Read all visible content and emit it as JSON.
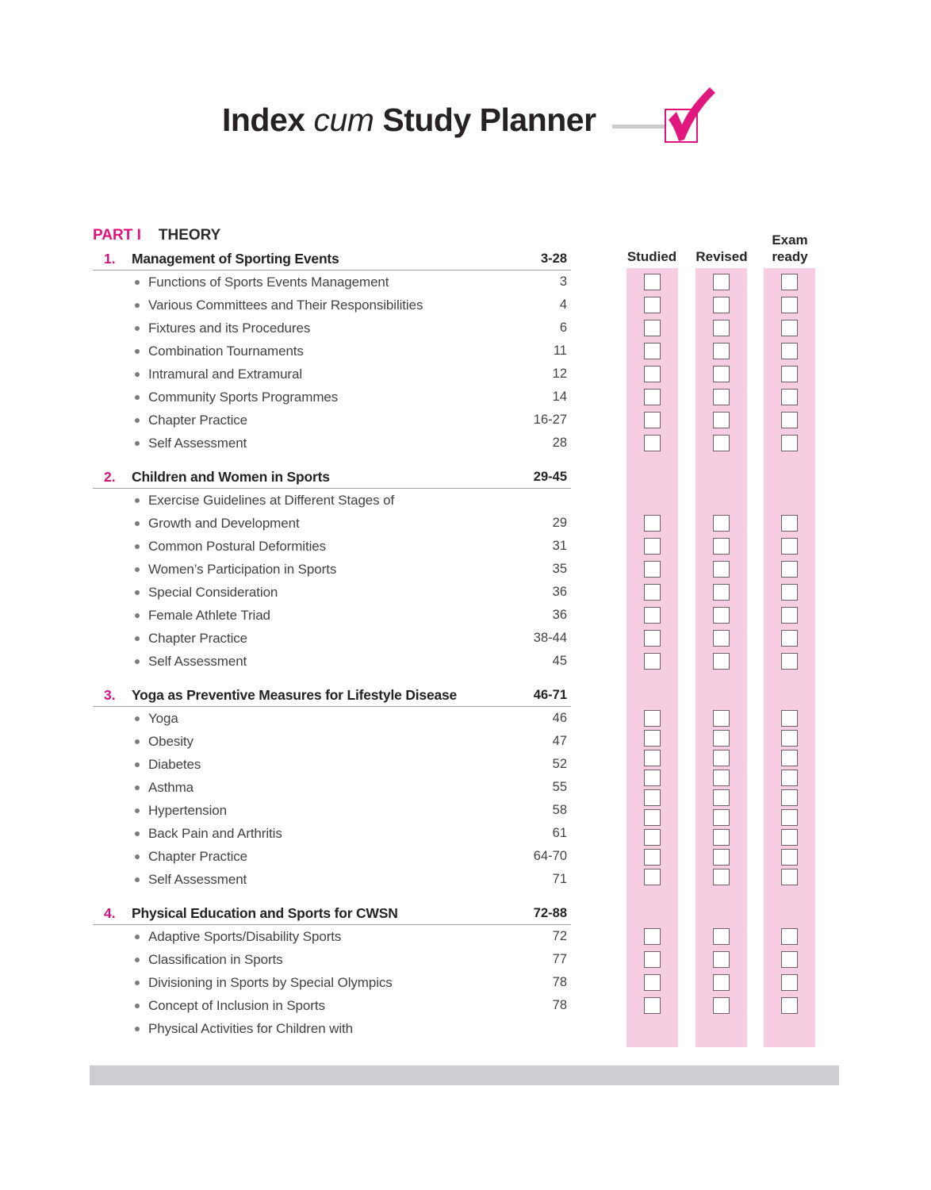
{
  "title": {
    "word1": "Index",
    "word2_italic": "cum",
    "word3": "Study Planner"
  },
  "part_heading": {
    "label": "PART I",
    "title": "THEORY"
  },
  "planner_columns": [
    {
      "label": "Studied"
    },
    {
      "label": "Revised"
    },
    {
      "label": "Exam ready"
    }
  ],
  "colors": {
    "accent_magenta": "#e0127c",
    "band_pink": "#f7cee1",
    "checkbox_border": "#6b6066",
    "footer_gray": "#cdced2"
  },
  "chapters": [
    {
      "number": "1.",
      "title": "Management of Sporting Events",
      "pages": "3-28",
      "topics": [
        {
          "label": "Functions of Sports Events Management",
          "page": "3"
        },
        {
          "label": "Various Committees and Their Responsibilities",
          "page": "4"
        },
        {
          "label": "Fixtures and its Procedures",
          "page": "6"
        },
        {
          "label": "Combination Tournaments",
          "page": "11"
        },
        {
          "label": "Intramural and Extramural",
          "page": "12"
        },
        {
          "label": "Community Sports Programmes",
          "page": "14"
        },
        {
          "label": "Chapter Practice",
          "page": "16-27"
        },
        {
          "label": "Self Assessment",
          "page": "28"
        }
      ],
      "checkboxes": {
        "count": 8,
        "first_row": 0,
        "packed": false
      }
    },
    {
      "number": "2.",
      "title": "Children and Women in Sports",
      "pages": "29-45",
      "topics": [
        {
          "label": "Exercise Guidelines at Different Stages of",
          "page": ""
        },
        {
          "label": "Growth and Development",
          "page": "29"
        },
        {
          "label": "Common Postural Deformities",
          "page": "31"
        },
        {
          "label": "Women’s Participation in Sports",
          "page": "35"
        },
        {
          "label": "Special Consideration",
          "page": "36"
        },
        {
          "label": "Female Athlete Triad",
          "page": "36"
        },
        {
          "label": "Chapter Practice",
          "page": "38-44"
        },
        {
          "label": "Self Assessment",
          "page": "45"
        }
      ],
      "checkboxes": {
        "count": 7,
        "first_row": 1,
        "packed": false
      }
    },
    {
      "number": "3.",
      "title": "Yoga as Preventive Measures for Lifestyle Disease",
      "pages": "46-71",
      "topics": [
        {
          "label": "Yoga",
          "page": "46"
        },
        {
          "label": "Obesity",
          "page": "47"
        },
        {
          "label": "Diabetes",
          "page": "52"
        },
        {
          "label": "Asthma",
          "page": "55"
        },
        {
          "label": "Hypertension",
          "page": "58"
        },
        {
          "label": "Back Pain and Arthritis",
          "page": "61"
        },
        {
          "label": "Chapter Practice",
          "page": "64-70"
        },
        {
          "label": "Self Assessment",
          "page": "71"
        }
      ],
      "checkboxes": {
        "count": 9,
        "first_row": 0,
        "packed": true
      }
    },
    {
      "number": "4.",
      "title": "Physical Education and Sports for CWSN",
      "pages": "72-88",
      "topics": [
        {
          "label": "Adaptive Sports/Disability Sports",
          "page": "72"
        },
        {
          "label": "Classification in Sports",
          "page": "77"
        },
        {
          "label": "Divisioning in Sports by Special Olympics",
          "page": "78"
        },
        {
          "label": "Concept of Inclusion in Sports",
          "page": "78"
        },
        {
          "label": "Physical Activities for Children with",
          "page": ""
        }
      ],
      "checkboxes": {
        "count": 4,
        "first_row": 0,
        "packed": false
      }
    }
  ]
}
